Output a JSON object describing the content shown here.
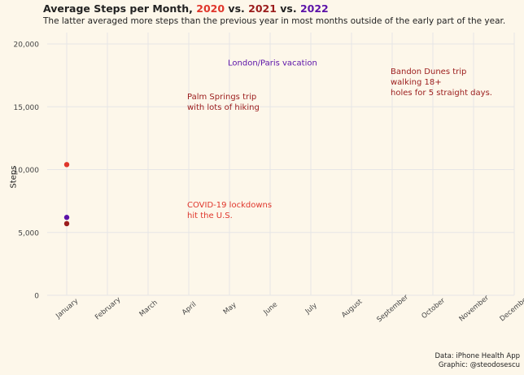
{
  "title": {
    "prefix": "Average Steps per Month, ",
    "y2020": "2020",
    "sep1": " vs. ",
    "y2021": "2021",
    "sep2": " vs. ",
    "y2022": "2022"
  },
  "subtitle": "The latter averaged more steps than the previous year in most months outside of the early part of the year.",
  "caption": {
    "line1": "Data: iPhone Health App",
    "line2": "Graphic: @steodosescu"
  },
  "colors": {
    "y2020": "#e0362b",
    "y2021": "#9b1c1c",
    "y2022": "#5b12a8",
    "background": "#fdf7ea",
    "grid": "#e6e6e6"
  },
  "chart_data": {
    "type": "scatter",
    "title": "Average Steps per Month, 2020 vs. 2021 vs. 2022",
    "ylabel": "Steps",
    "xlabel": "",
    "categories": [
      "January",
      "February",
      "March",
      "April",
      "May",
      "June",
      "July",
      "August",
      "September",
      "October",
      "November",
      "December"
    ],
    "ylim": [
      0,
      20000
    ],
    "yticks": [
      0,
      5000,
      10000,
      15000,
      20000
    ],
    "ytick_labels": [
      "0",
      "5,000",
      "10,000",
      "15,000",
      "20,000"
    ],
    "grid": true,
    "legend": "none",
    "series": [
      {
        "name": "2020",
        "color": "#e0362b",
        "x": [
          "January"
        ],
        "values": [
          10400
        ]
      },
      {
        "name": "2021",
        "color": "#9b1c1c",
        "x": [
          "January"
        ],
        "values": [
          5700
        ]
      },
      {
        "name": "2022",
        "color": "#5b12a8",
        "x": [
          "January"
        ],
        "values": [
          6200
        ]
      }
    ],
    "annotations": [
      {
        "lines": [
          "London/Paris vacation"
        ],
        "x": "May",
        "y": 18300,
        "color": "#5b12a8"
      },
      {
        "lines": [
          "Palm Springs trip",
          "with lots of hiking"
        ],
        "x": "April",
        "y": 15600,
        "color": "#9b1c1c"
      },
      {
        "lines": [
          "Bandon Dunes trip",
          "walking 18+",
          "holes for 5 straight days."
        ],
        "x": "September",
        "y": 17600,
        "color": "#9b1c1c"
      },
      {
        "lines": [
          "COVID-19 lockdowns",
          "hit the U.S."
        ],
        "x": "April",
        "y": 7000,
        "color": "#e0362b"
      }
    ]
  }
}
